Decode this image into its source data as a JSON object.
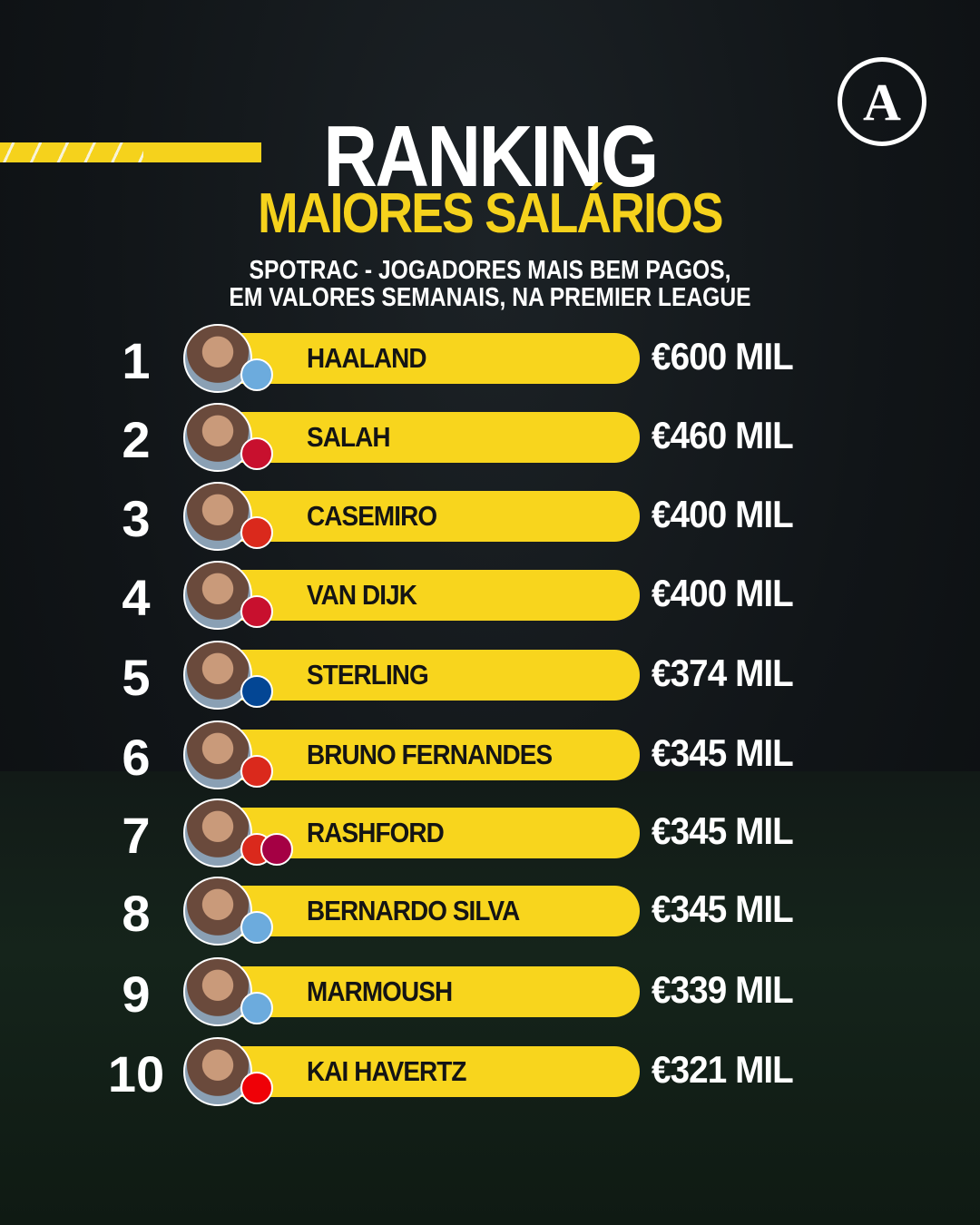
{
  "header": {
    "logo": "A",
    "title": "RANKING",
    "subtitle": "MAIORES SALÁRIOS",
    "description_line1": "SPOTRAC - JOGADORES MAIS BEM PAGOS,",
    "description_line2": "EM VALORES SEMANAIS, NA PREMIER LEAGUE"
  },
  "colors": {
    "accent": "#f8d51d",
    "background": "#111518"
  },
  "ranking": [
    {
      "rank": "1",
      "name": "HAALAND",
      "salary": "€600 MIL",
      "clubs": [
        {
          "club": "Manchester City",
          "color": "#6cabdd"
        }
      ]
    },
    {
      "rank": "2",
      "name": "SALAH",
      "salary": "€460 MIL",
      "clubs": [
        {
          "club": "Liverpool",
          "color": "#c8102e"
        }
      ]
    },
    {
      "rank": "3",
      "name": "CASEMIRO",
      "salary": "€400 MIL",
      "clubs": [
        {
          "club": "Manchester United",
          "color": "#da291c"
        }
      ]
    },
    {
      "rank": "4",
      "name": "VAN DIJK",
      "salary": "€400 MIL",
      "clubs": [
        {
          "club": "Liverpool",
          "color": "#c8102e"
        }
      ]
    },
    {
      "rank": "5",
      "name": "STERLING",
      "salary": "€374 MIL",
      "clubs": [
        {
          "club": "Chelsea",
          "color": "#034694"
        }
      ]
    },
    {
      "rank": "6",
      "name": "BRUNO FERNANDES",
      "salary": "€345 MIL",
      "clubs": [
        {
          "club": "Manchester United",
          "color": "#da291c"
        }
      ]
    },
    {
      "rank": "7",
      "name": "RASHFORD",
      "salary": "€345 MIL",
      "clubs": [
        {
          "club": "Manchester United",
          "color": "#da291c"
        },
        {
          "club": "Barcelona",
          "color": "#a50044"
        }
      ]
    },
    {
      "rank": "8",
      "name": "BERNARDO SILVA",
      "salary": "€345 MIL",
      "clubs": [
        {
          "club": "Manchester City",
          "color": "#6cabdd"
        }
      ]
    },
    {
      "rank": "9",
      "name": "MARMOUSH",
      "salary": "€339 MIL",
      "clubs": [
        {
          "club": "Manchester City",
          "color": "#6cabdd"
        }
      ]
    },
    {
      "rank": "10",
      "name": "KAI HAVERTZ",
      "salary": "€321 MIL",
      "clubs": [
        {
          "club": "Arsenal",
          "color": "#ef0107"
        }
      ]
    }
  ]
}
